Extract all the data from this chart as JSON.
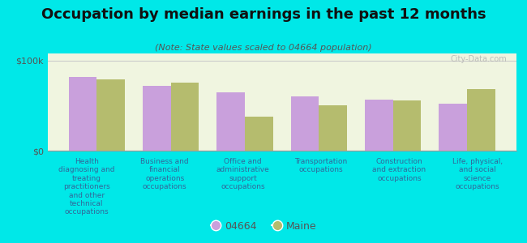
{
  "title": "Occupation by median earnings in the past 12 months",
  "subtitle": "(Note: State values scaled to 04664 population)",
  "background_color": "#00e8e8",
  "plot_bg_top": "#f0f5e0",
  "plot_bg_bottom": "#e8f0d0",
  "categories": [
    "Health\ndiagnosing and\ntreating\npractitioners\nand other\ntechnical\noccupations",
    "Business and\nfinancial\noperations\noccupations",
    "Office and\nadministrative\nsupport\noccupations",
    "Transportation\noccupations",
    "Construction\nand extraction\noccupations",
    "Life, physical,\nand social\nscience\noccupations"
  ],
  "values_04664": [
    82000,
    72000,
    65000,
    60000,
    57000,
    52000
  ],
  "values_maine": [
    79000,
    76000,
    38000,
    50000,
    56000,
    68000
  ],
  "color_04664": "#c9a0dc",
  "color_maine": "#b5bc6e",
  "ylabel_ticks": [
    "$0",
    "$100k"
  ],
  "ytick_values": [
    0,
    100000
  ],
  "ylim": [
    0,
    108000
  ],
  "legend_label_04664": "04664",
  "legend_label_maine": "Maine",
  "watermark": "City-Data.com",
  "title_color": "#111111",
  "subtitle_color": "#555555",
  "xlabel_color": "#336699"
}
